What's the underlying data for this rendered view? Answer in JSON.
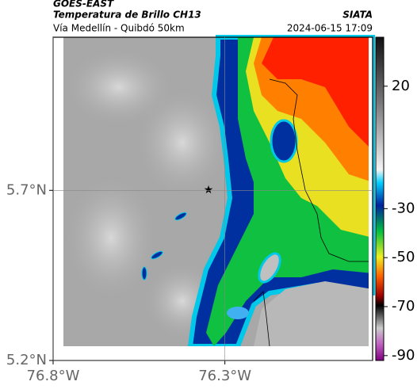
{
  "header": {
    "source": "GOES-EAST",
    "title": "Temperatura de Brillo CH13",
    "org": "SIATA",
    "subtitle": "Vía Medellín - Quibdó 50km",
    "datetime": "2024-06-15 17:09"
  },
  "map": {
    "xlim": [
      -76.8,
      -75.87
    ],
    "ylim": [
      5.2,
      6.15
    ],
    "xticks": [
      {
        "value": -76.8,
        "label": "76.8°W"
      },
      {
        "value": -76.3,
        "label": "76.3°W"
      }
    ],
    "yticks": [
      {
        "value": 5.2,
        "label": "5.2°N"
      },
      {
        "value": 5.7,
        "label": "5.7°N"
      }
    ],
    "grid": true
  },
  "colorbar": {
    "lim": [
      -92,
      40
    ],
    "ticks": [
      20,
      -30,
      -50,
      -70,
      -90
    ]
  }
}
